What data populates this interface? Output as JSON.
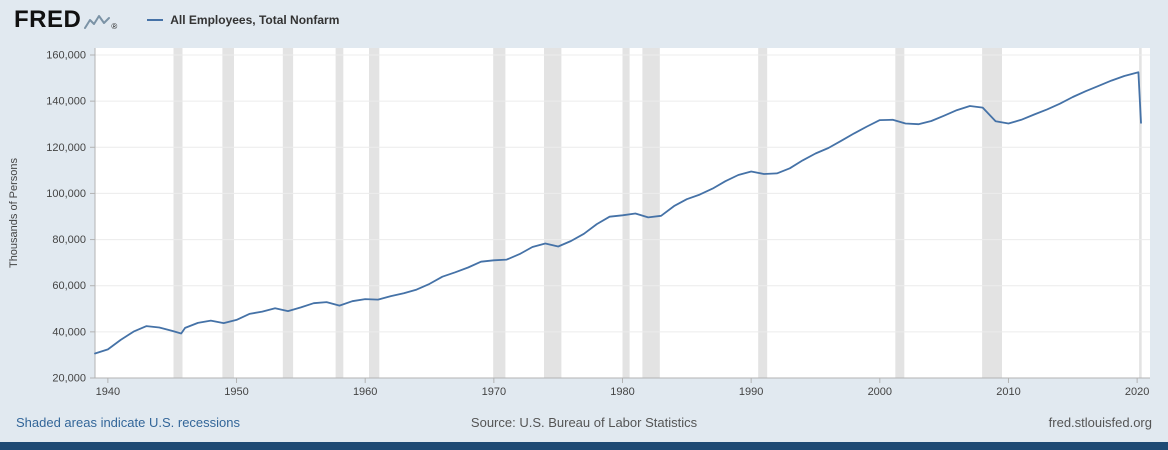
{
  "colors": {
    "background": "#e1e9f0",
    "plot_background": "#ffffff",
    "line": "#4572a7",
    "recession_band": "#e3e3e3",
    "gridline": "#ececec",
    "axis": "#b3b3b3",
    "tick_label": "#444444",
    "link": "#336699",
    "footer_text": "#555555",
    "bottom_bar": "#1e4a74",
    "logo_icon": "#7b93a6"
  },
  "header": {
    "logo_text": "FRED",
    "registered_mark": "®",
    "legend": {
      "label": "All Employees, Total Nonfarm"
    }
  },
  "chart_data": {
    "type": "line",
    "title": "All Employees, Total Nonfarm",
    "xlabel": "",
    "ylabel": "Thousands of Persons",
    "x_range": [
      1939,
      2021
    ],
    "y_range": [
      20000,
      160000
    ],
    "grid": true,
    "legend_position": "top-left-header",
    "y_ticks": [
      20000,
      40000,
      60000,
      80000,
      100000,
      120000,
      140000,
      160000
    ],
    "y_tick_labels": [
      "20,000",
      "40,000",
      "60,000",
      "80,000",
      "100,000",
      "120,000",
      "140,000",
      "160,000"
    ],
    "x_ticks": [
      1940,
      1950,
      1960,
      1970,
      1980,
      1990,
      2000,
      2010,
      2020
    ],
    "recessions": [
      [
        1945.1,
        1945.8
      ],
      [
        1948.9,
        1949.8
      ],
      [
        1953.6,
        1954.4
      ],
      [
        1957.7,
        1958.3
      ],
      [
        1960.3,
        1961.1
      ],
      [
        1969.95,
        1970.9
      ],
      [
        1973.9,
        1975.25
      ],
      [
        1980.0,
        1980.55
      ],
      [
        1981.55,
        1982.9
      ],
      [
        1990.55,
        1991.25
      ],
      [
        2001.2,
        2001.9
      ],
      [
        2007.95,
        2009.5
      ],
      [
        2020.15,
        2020.35
      ]
    ],
    "series": [
      {
        "name": "All Employees, Total Nonfarm",
        "units": "Thousands of Persons",
        "x": [
          1939,
          1940,
          1941,
          1942,
          1943,
          1944,
          1945,
          1945.7,
          1946,
          1947,
          1948,
          1949,
          1950,
          1951,
          1952,
          1953,
          1954,
          1955,
          1956,
          1957,
          1958,
          1959,
          1960,
          1961,
          1962,
          1963,
          1964,
          1965,
          1966,
          1967,
          1968,
          1969,
          1970,
          1971,
          1972,
          1973,
          1974,
          1975,
          1976,
          1977,
          1978,
          1979,
          1980,
          1981,
          1982,
          1983,
          1984,
          1985,
          1986,
          1987,
          1988,
          1989,
          1990,
          1991,
          1992,
          1993,
          1994,
          1995,
          1996,
          1997,
          1998,
          1999,
          2000,
          2001,
          2002,
          2003,
          2004,
          2005,
          2006,
          2007,
          2008,
          2009,
          2010,
          2011,
          2012,
          2013,
          2014,
          2015,
          2016,
          2017,
          2018,
          2019,
          2020.1,
          2020.3
        ],
        "y": [
          30600,
          32400,
          36500,
          40100,
          42500,
          41900,
          40400,
          39300,
          41700,
          43900,
          44900,
          43800,
          45200,
          47800,
          48800,
          50200,
          49000,
          50600,
          52400,
          52900,
          51400,
          53300,
          54200,
          54000,
          55500,
          56700,
          58300,
          60800,
          63900,
          65800,
          67900,
          70400,
          71000,
          71300,
          73700,
          76800,
          78300,
          77000,
          79400,
          82500,
          86700,
          89900,
          90500,
          91300,
          89600,
          90300,
          94500,
          97500,
          99500,
          102100,
          105300,
          108000,
          109500,
          108400,
          108700,
          110900,
          114300,
          117300,
          119700,
          122800,
          126000,
          129000,
          131800,
          131900,
          130300,
          130000,
          131400,
          133700,
          136100,
          137900,
          137200,
          131300,
          130300,
          131900,
          134200,
          136400,
          138900,
          141800,
          144300,
          146600,
          148900,
          150900,
          152500,
          130600
        ]
      }
    ]
  },
  "footer": {
    "left_link": "Shaded areas indicate U.S. recessions",
    "source": "Source: U.S. Bureau of Labor Statistics",
    "right_link": "fred.stlouisfed.org"
  }
}
